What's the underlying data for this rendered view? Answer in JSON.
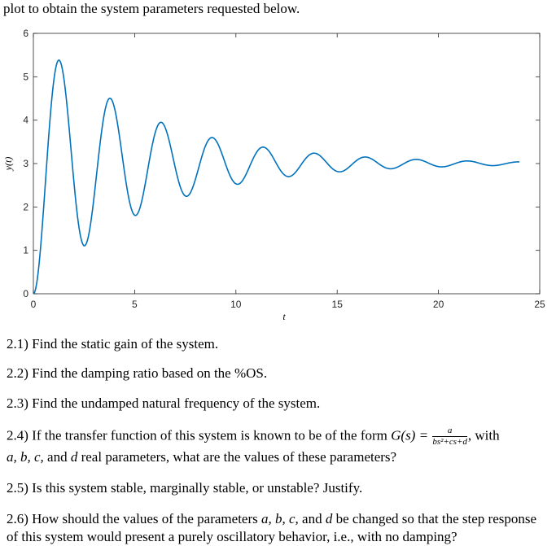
{
  "intro_text": "plot to obtain the system parameters requested below.",
  "chart_data": {
    "type": "line",
    "xlabel": "t",
    "ylabel": "y(t)",
    "xlim": [
      0,
      25
    ],
    "ylim": [
      0,
      6
    ],
    "xticks": [
      0,
      5,
      10,
      15,
      20,
      25
    ],
    "yticks": [
      0,
      1,
      2,
      3,
      4,
      5,
      6
    ],
    "grid": false,
    "series_color": "#0072BD",
    "model": {
      "final_value": 3,
      "damping_ratio": 0.073,
      "natural_frequency": 2.5,
      "t_end": 24
    },
    "approx_peaks": [
      [
        1.26,
        5.16
      ],
      [
        2.52,
        1.45
      ],
      [
        3.78,
        4.1
      ],
      [
        6.3,
        3.6
      ],
      [
        8.8,
        3.3
      ]
    ]
  },
  "questions": {
    "q1": "2.1) Find the static gain of the system.",
    "q2": "2.2) Find the damping ratio based on the %OS.",
    "q3": "2.3) Find the undamped natural frequency of the system.",
    "q4_a": "2.4) If the transfer function of this system is known to be of the form",
    "q4_g": "G(s) =",
    "q4_num": "a",
    "q4_den": "bs²+cs+d",
    "q4_b": ", with",
    "q4_line2_vars": "a, b, c,",
    "q4_line2_and": "and",
    "q4_line2_d": "d",
    "q4_line2_rest": "real parameters, what are the values of these parameters?",
    "q5": "2.5) Is this system stable, marginally stable, or unstable? Justify.",
    "q6_a": "2.6) How should the values of the parameters",
    "q6_vars": "a, b, c,",
    "q6_and": "and",
    "q6_d": "d",
    "q6_b": "be changed so that the step response",
    "q6_line2": "of this system would present a purely oscillatory behavior, i.e., with no damping?"
  }
}
